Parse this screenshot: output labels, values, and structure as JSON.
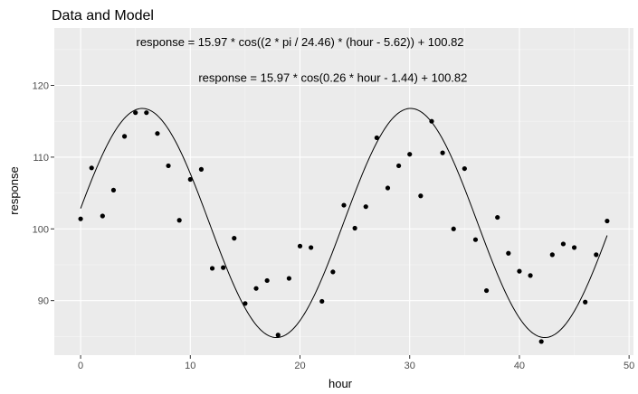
{
  "chart_data": {
    "type": "scatter",
    "title": "Data and Model",
    "xlabel": "hour",
    "ylabel": "response",
    "xlim": [
      -2.4,
      50.4
    ],
    "ylim": [
      82.4,
      128
    ],
    "xticks": [
      0,
      10,
      20,
      30,
      40,
      50
    ],
    "yticks": [
      90,
      100,
      110,
      120
    ],
    "grid": true,
    "annotations": [
      {
        "text": "response = 15.97 * cos((2 * pi / 24.46) * (hour - 5.62)) + 100.82",
        "x": 20,
        "y": 125.5
      },
      {
        "text": "response = 15.97 * cos(0.26 * hour - 1.44) + 100.82",
        "x": 23,
        "y": 120.5
      }
    ],
    "model": {
      "amplitude": 15.97,
      "period": 24.46,
      "phase": 5.62,
      "mean": 100.82,
      "xrange": [
        0,
        48
      ]
    },
    "points": [
      {
        "x": 0,
        "y": 101.4
      },
      {
        "x": 1,
        "y": 108.5
      },
      {
        "x": 2,
        "y": 101.8
      },
      {
        "x": 3,
        "y": 105.4
      },
      {
        "x": 4,
        "y": 112.9
      },
      {
        "x": 5,
        "y": 116.2
      },
      {
        "x": 6,
        "y": 116.2
      },
      {
        "x": 7,
        "y": 113.3
      },
      {
        "x": 8,
        "y": 108.8
      },
      {
        "x": 9,
        "y": 101.2
      },
      {
        "x": 10,
        "y": 106.9
      },
      {
        "x": 11,
        "y": 108.3
      },
      {
        "x": 12,
        "y": 94.5
      },
      {
        "x": 13,
        "y": 94.6
      },
      {
        "x": 14,
        "y": 98.7
      },
      {
        "x": 15,
        "y": 89.6
      },
      {
        "x": 16,
        "y": 91.7
      },
      {
        "x": 17,
        "y": 92.8
      },
      {
        "x": 18,
        "y": 85.2
      },
      {
        "x": 19,
        "y": 93.1
      },
      {
        "x": 20,
        "y": 97.6
      },
      {
        "x": 21,
        "y": 97.4
      },
      {
        "x": 22,
        "y": 89.9
      },
      {
        "x": 23,
        "y": 94.0
      },
      {
        "x": 24,
        "y": 103.3
      },
      {
        "x": 25,
        "y": 100.1
      },
      {
        "x": 26,
        "y": 103.1
      },
      {
        "x": 27,
        "y": 112.7
      },
      {
        "x": 28,
        "y": 105.7
      },
      {
        "x": 29,
        "y": 108.8
      },
      {
        "x": 30,
        "y": 110.4
      },
      {
        "x": 31,
        "y": 104.6
      },
      {
        "x": 32,
        "y": 115.0
      },
      {
        "x": 33,
        "y": 110.6
      },
      {
        "x": 34,
        "y": 100.0
      },
      {
        "x": 35,
        "y": 108.4
      },
      {
        "x": 36,
        "y": 98.5
      },
      {
        "x": 37,
        "y": 91.4
      },
      {
        "x": 38,
        "y": 101.6
      },
      {
        "x": 39,
        "y": 96.6
      },
      {
        "x": 40,
        "y": 94.1
      },
      {
        "x": 41,
        "y": 93.5
      },
      {
        "x": 42,
        "y": 84.3
      },
      {
        "x": 43,
        "y": 96.4
      },
      {
        "x": 44,
        "y": 97.9
      },
      {
        "x": 45,
        "y": 97.4
      },
      {
        "x": 46,
        "y": 89.8
      },
      {
        "x": 47,
        "y": 96.4
      },
      {
        "x": 48,
        "y": 101.1
      }
    ],
    "colors": {
      "panel": "#EBEBEB",
      "grid_major": "#FFFFFF",
      "grid_minor": "#F5F5F5",
      "points": "#000000",
      "line": "#000000"
    }
  }
}
